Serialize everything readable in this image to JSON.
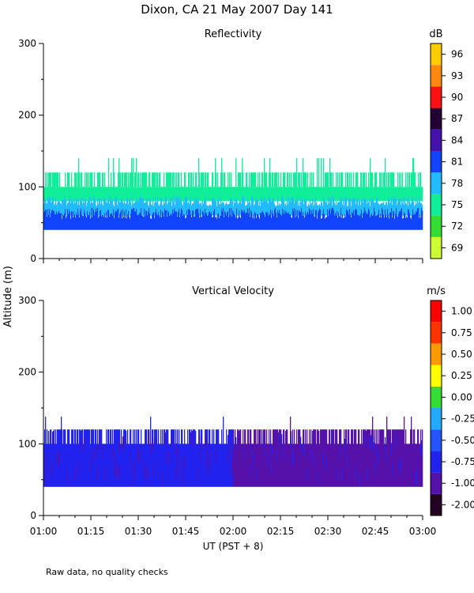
{
  "page": {
    "title": "Dixon, CA 21 May 2007  Day 141",
    "footnote": "Raw data, no quality checks",
    "ylabel": "Altitude (m)",
    "xlabel": "UT  (PST + 8)"
  },
  "chart_data": [
    {
      "type": "heatmap",
      "title": "Reflectivity",
      "ylim": [
        0,
        300
      ],
      "yticks": [
        0,
        100,
        200,
        300
      ],
      "xlim": [
        "01:00",
        "03:00"
      ],
      "colorbar": {
        "unit": "dB",
        "tick_labels": [
          "69",
          "72",
          "75",
          "78",
          "81",
          "84",
          "87",
          "90",
          "93",
          "96"
        ],
        "colors": [
          "#ccff33",
          "#33dd33",
          "#11ee99",
          "#22bbff",
          "#1144ff",
          "#4411aa",
          "#220033",
          "#ff1111",
          "#ff8811",
          "#ffcc00"
        ]
      },
      "layers": [
        {
          "color": "#11ee99",
          "base_m": 100,
          "top_m": 120,
          "note": "patchy upper echo"
        },
        {
          "color": "#11ee99",
          "base_m": 80,
          "top_m": 100
        },
        {
          "color": "#22bbff",
          "base_m": 60,
          "top_m": 80
        },
        {
          "color": "#1144ff",
          "base_m": 40,
          "top_m": 60
        }
      ]
    },
    {
      "type": "heatmap",
      "title": "Vertical Velocity",
      "ylim": [
        0,
        300
      ],
      "yticks": [
        0,
        100,
        200,
        300
      ],
      "xlim": [
        "01:00",
        "03:00"
      ],
      "colorbar": {
        "unit": "m/s",
        "tick_labels": [
          "-2.00",
          "-1.00",
          "-0.75",
          "-0.50",
          "-0.25",
          "0.00",
          "0.25",
          "0.50",
          "0.75",
          "1.00"
        ],
        "colors": [
          "#220022",
          "#5511aa",
          "#2222ee",
          "#2255ff",
          "#22aaff",
          "#33dd33",
          "#ffff00",
          "#ff9900",
          "#ff3300",
          "#ff0000"
        ]
      },
      "layers": [
        {
          "color": "#2222ee",
          "base_m": 40,
          "top_m": 120,
          "note": "01:00-02:00 mostly -0.75"
        },
        {
          "color": "#5511aa",
          "base_m": 40,
          "top_m": 120,
          "note": "02:00-03:00 mostly -1.00"
        }
      ]
    }
  ],
  "xaxis": {
    "tick_labels": [
      "01:00",
      "01:15",
      "01:30",
      "01:45",
      "02:00",
      "02:15",
      "02:30",
      "02:45",
      "03:00"
    ]
  }
}
